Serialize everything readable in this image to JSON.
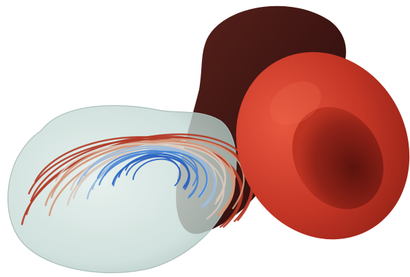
{
  "scene": {
    "background": "#ffffff",
    "objects": [
      "translucent-vessel",
      "dark-red-cell",
      "bright-red-cell",
      "flow-streamlines"
    ],
    "colors": {
      "vessel_fill": "#c9dcd7",
      "vessel_edge": "#a9bdb9",
      "dark_cell": "#3e1512",
      "dark_cell_light": "#5a1f1a",
      "bright_cell": "#c8382a",
      "bright_cell_light": "#e5563f",
      "bright_cell_dimple": "#7a1a13",
      "streamline_outer": "#b8452e",
      "streamline_mid": "#d5ad97",
      "streamline_inner": "#2f6ec8"
    },
    "streamlines": {
      "count": 26,
      "color_scale": [
        "#b23b27",
        "#d4977a",
        "#d9c7bb",
        "#9bbbdc",
        "#4a86d3",
        "#2a62c0"
      ]
    }
  }
}
